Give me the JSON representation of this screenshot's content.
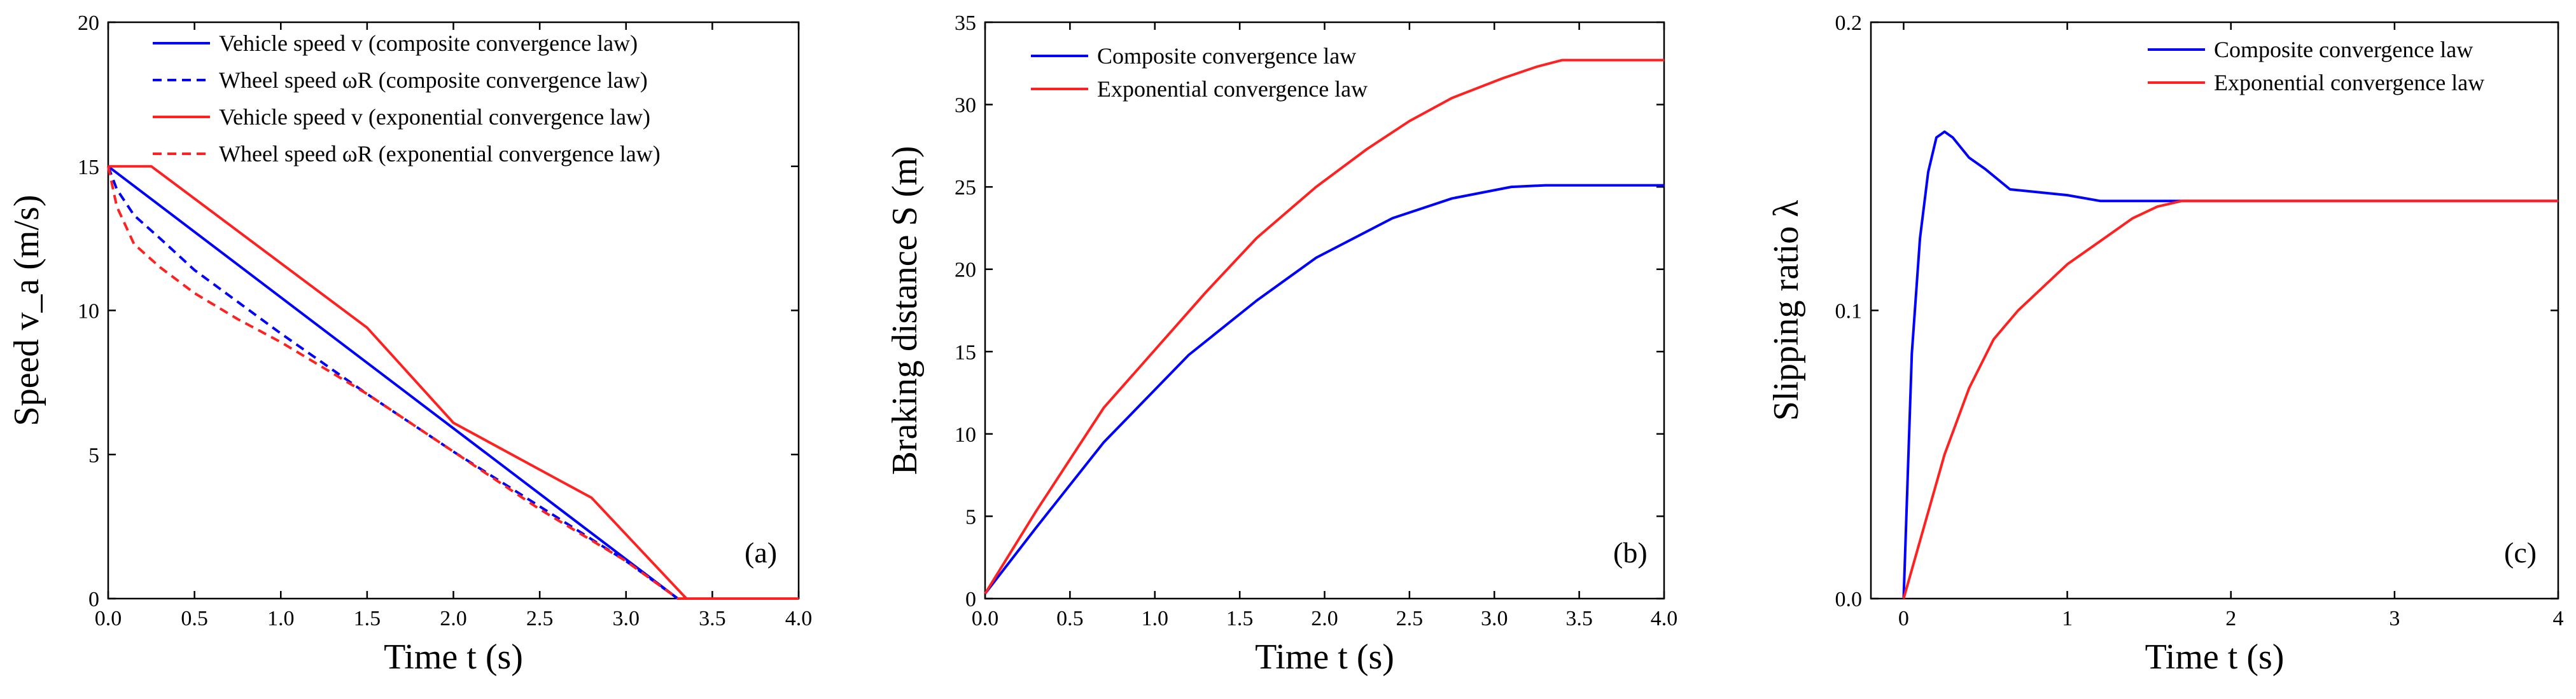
{
  "colors": {
    "blue": "#0000ff",
    "red": "#ff2020"
  },
  "chart_data": [
    {
      "type": "line",
      "panel": "(a)",
      "xlabel": "Time t (s)",
      "ylabel": "Speed v_a (m/s)",
      "xlim": [
        0,
        4
      ],
      "ylim": [
        0,
        20
      ],
      "xticks": [
        0,
        0.5,
        1,
        1.5,
        2,
        2.5,
        3,
        3.5,
        4
      ],
      "xtick_labels": [
        "0.0",
        "0.5",
        "1.0",
        "1.5",
        "2.0",
        "2.5",
        "3.0",
        "3.5",
        "4.0"
      ],
      "yticks": [
        0,
        5,
        10,
        15,
        20
      ],
      "ytick_labels": [
        "0",
        "5",
        "10",
        "15",
        "20"
      ],
      "legend_position": "top-right",
      "series": [
        {
          "name": "Vehicle speed v (composite convergence law)",
          "color": "blue",
          "dash": "solid",
          "x": [
            0,
            3.3,
            4
          ],
          "y": [
            15,
            0,
            0
          ]
        },
        {
          "name": "Wheel speed ωR (composite convergence law)",
          "color": "blue",
          "dash": "dash",
          "x": [
            0,
            0.05,
            0.15,
            0.3,
            0.5,
            0.75,
            1.0,
            1.5,
            2.0,
            2.5,
            3.0,
            3.3,
            4
          ],
          "y": [
            15,
            14.2,
            13.3,
            12.5,
            11.4,
            10.3,
            9.2,
            7.1,
            5.1,
            3.2,
            1.3,
            0,
            0
          ]
        },
        {
          "name": "Vehicle speed v (exponential convergence law)",
          "color": "red",
          "dash": "solid",
          "x": [
            0,
            0.25,
            1.5,
            2.0,
            2.8,
            3.35,
            4
          ],
          "y": [
            15,
            15,
            9.4,
            6.1,
            3.5,
            0,
            0
          ]
        },
        {
          "name": "Wheel speed ωR (exponential convergence law)",
          "color": "red",
          "dash": "dash",
          "x": [
            0,
            0.05,
            0.15,
            0.3,
            0.5,
            0.75,
            1.0,
            1.5,
            2.0,
            2.5,
            3.0,
            3.3,
            4
          ],
          "y": [
            15,
            13.6,
            12.3,
            11.5,
            10.6,
            9.7,
            8.9,
            7.1,
            5.1,
            3.1,
            1.3,
            0,
            0
          ]
        }
      ]
    },
    {
      "type": "line",
      "panel": "(b)",
      "xlabel": "Time t (s)",
      "ylabel": "Braking distance S (m)",
      "xlim": [
        0,
        4
      ],
      "ylim": [
        0,
        35
      ],
      "xticks": [
        0,
        0.5,
        1,
        1.5,
        2,
        2.5,
        3,
        3.5,
        4
      ],
      "xtick_labels": [
        "0.0",
        "0.5",
        "1.0",
        "1.5",
        "2.0",
        "2.5",
        "3.0",
        "3.5",
        "4.0"
      ],
      "yticks": [
        0,
        5,
        10,
        15,
        20,
        25,
        30,
        35
      ],
      "ytick_labels": [
        "0",
        "5",
        "10",
        "15",
        "20",
        "25",
        "30",
        "35"
      ],
      "legend_position": "top-left",
      "series": [
        {
          "name": "Composite convergence law",
          "color": "blue",
          "dash": "solid",
          "x": [
            0,
            0.3,
            0.7,
            1.2,
            1.6,
            1.95,
            2.4,
            2.75,
            3.1,
            3.3,
            3.5,
            4
          ],
          "y": [
            0.3,
            4.3,
            9.5,
            14.8,
            18.1,
            20.7,
            23.1,
            24.3,
            25.0,
            25.1,
            25.1,
            25.1
          ]
        },
        {
          "name": "Exponential convergence law",
          "color": "red",
          "dash": "solid",
          "x": [
            0,
            0.3,
            0.7,
            1.3,
            1.6,
            1.95,
            2.25,
            2.5,
            2.75,
            3.05,
            3.25,
            3.4,
            4
          ],
          "y": [
            0.3,
            5.3,
            11.6,
            18.6,
            21.9,
            25.0,
            27.3,
            29.0,
            30.4,
            31.6,
            32.3,
            32.7,
            32.7
          ]
        }
      ]
    },
    {
      "type": "line",
      "panel": "(c)",
      "xlabel": "Time t (s)",
      "ylabel": "Slipping ratio λ",
      "xlim": [
        -0.2,
        4
      ],
      "ylim": [
        0,
        0.2
      ],
      "xticks": [
        0,
        1,
        2,
        3,
        4
      ],
      "xtick_labels": [
        "0",
        "1",
        "2",
        "3",
        "4"
      ],
      "yticks": [
        0,
        0.1,
        0.2
      ],
      "ytick_labels": [
        "0.0",
        "0.1",
        "0.2"
      ],
      "legend_position": "top-right",
      "series": [
        {
          "name": "Composite convergence law",
          "color": "blue",
          "dash": "solid",
          "x": [
            0,
            0.05,
            0.1,
            0.15,
            0.2,
            0.25,
            0.3,
            0.4,
            0.5,
            0.65,
            1.0,
            1.2,
            1.7,
            4
          ],
          "y": [
            0,
            0.085,
            0.125,
            0.148,
            0.16,
            0.162,
            0.16,
            0.153,
            0.149,
            0.142,
            0.14,
            0.138,
            0.138,
            0.138
          ]
        },
        {
          "name": "Exponential convergence law",
          "color": "red",
          "dash": "solid",
          "x": [
            0,
            0.1,
            0.25,
            0.4,
            0.55,
            0.7,
            0.85,
            1.0,
            1.2,
            1.4,
            1.55,
            1.7,
            4
          ],
          "y": [
            0,
            0.02,
            0.05,
            0.073,
            0.09,
            0.1,
            0.108,
            0.116,
            0.124,
            0.132,
            0.136,
            0.138,
            0.138
          ]
        }
      ]
    }
  ]
}
